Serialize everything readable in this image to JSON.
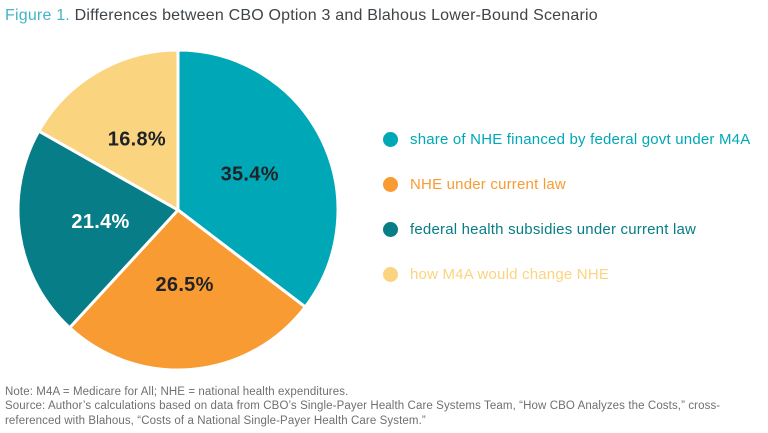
{
  "header": {
    "figure_label": "Figure 1.",
    "title": "Differences between CBO Option 3 and Blahous Lower-Bound Scenario"
  },
  "chart_data": {
    "type": "pie",
    "title": "Figure 1. Differences between CBO Option 3 and Blahous Lower-Bound Scenario",
    "unit": "percent",
    "start_angle_deg": 0,
    "direction": "clockwise",
    "legend_position": "right",
    "data_label_format": "percent_one_decimal",
    "slices": [
      {
        "label": "share of NHE financed by federal govt under M4A",
        "value": 35.4,
        "color": "#00A8B7",
        "label_color": "#1F2227"
      },
      {
        "label": "NHE under current law",
        "value": 26.5,
        "color": "#F89B32",
        "label_color": "#1F2227"
      },
      {
        "label": "federal health subsidies under current law",
        "value": 21.4,
        "color": "#077D87",
        "label_color": "#FFFFFF"
      },
      {
        "label": "how M4A would change NHE",
        "value": 16.8,
        "color": "#FBD47F",
        "label_color": "#1F2227"
      }
    ]
  },
  "footnotes": {
    "note": "Note: M4A = Medicare for All; NHE = national health expenditures.",
    "source": "Source: Author’s calculations based on data from CBO’s Single-Payer Health Care Systems Team, “How CBO Analyzes the Costs,” cross-referenced with Blahous, “Costs of a National Single-Payer Health Care System.”"
  },
  "colors": {
    "figure_label_accent": "#45B5C5",
    "title_text": "#3E4448",
    "note_text": "#6D7073",
    "slice_divider": "#FFFFFF",
    "background": "#FFFFFF"
  }
}
